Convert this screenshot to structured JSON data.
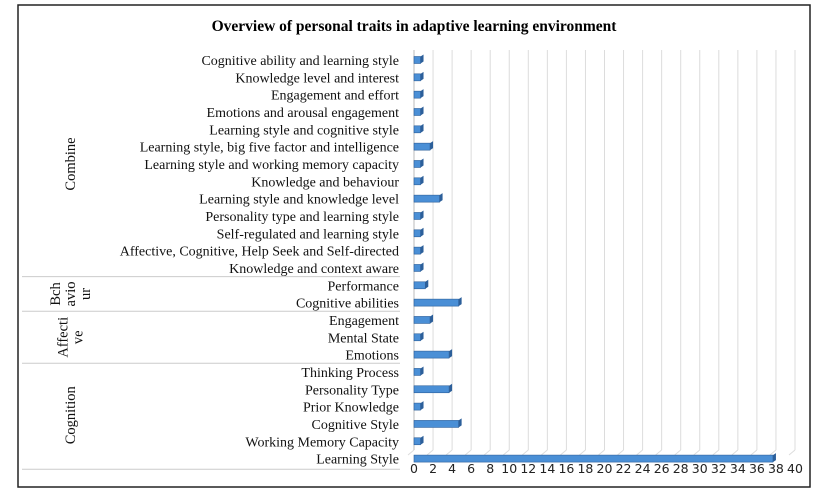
{
  "chart_data": {
    "type": "bar",
    "orientation": "horizontal",
    "title": "Overview of personal traits in adaptive learning environment",
    "xlim": [
      0,
      40
    ],
    "x_ticks": [
      0,
      2,
      4,
      6,
      8,
      10,
      12,
      14,
      16,
      18,
      20,
      22,
      24,
      26,
      28,
      30,
      32,
      34,
      36,
      38,
      40
    ],
    "grid": true,
    "legend": "none",
    "bar_color": "#4a8fd6",
    "groups": [
      {
        "name": "Combine",
        "categories": [
          {
            "label": "Cognitive ability and learning style",
            "value": 1
          },
          {
            "label": "Knowledge level and interest",
            "value": 1
          },
          {
            "label": "Engagement and effort",
            "value": 1
          },
          {
            "label": "Emotions and arousal engagement",
            "value": 1
          },
          {
            "label": "Learning style and cognitive style",
            "value": 1
          },
          {
            "label": "Learning style, big five factor and intelligence",
            "value": 2
          },
          {
            "label": "Learning style and working memory capacity",
            "value": 1
          },
          {
            "label": "Knowledge and behaviour",
            "value": 1
          },
          {
            "label": "Learning style and knowledge level",
            "value": 3
          },
          {
            "label": "Personality type and learning style",
            "value": 1
          },
          {
            "label": "Self-regulated and learning style",
            "value": 1
          },
          {
            "label": "Affective, Cognitive, Help Seek and Self-directed",
            "value": 1
          },
          {
            "label": "Knowledge and context aware",
            "value": 1
          }
        ]
      },
      {
        "name": "Bch avio ur",
        "categories": [
          {
            "label": "Performance",
            "value": 1.5
          },
          {
            "label": "Cognitive abilities",
            "value": 5
          }
        ]
      },
      {
        "name": "Affecti ve",
        "categories": [
          {
            "label": "Engagement",
            "value": 2
          },
          {
            "label": "Mental State",
            "value": 1
          },
          {
            "label": "Emotions",
            "value": 4
          }
        ]
      },
      {
        "name": "Cognition",
        "categories": [
          {
            "label": "Thinking Process",
            "value": 1
          },
          {
            "label": "Personality Type",
            "value": 4
          },
          {
            "label": "Prior Knowledge",
            "value": 1
          },
          {
            "label": "Cognitive Style",
            "value": 5
          },
          {
            "label": "Working Memory Capacity",
            "value": 1
          },
          {
            "label": "Learning Style",
            "value": 38
          }
        ]
      }
    ]
  }
}
